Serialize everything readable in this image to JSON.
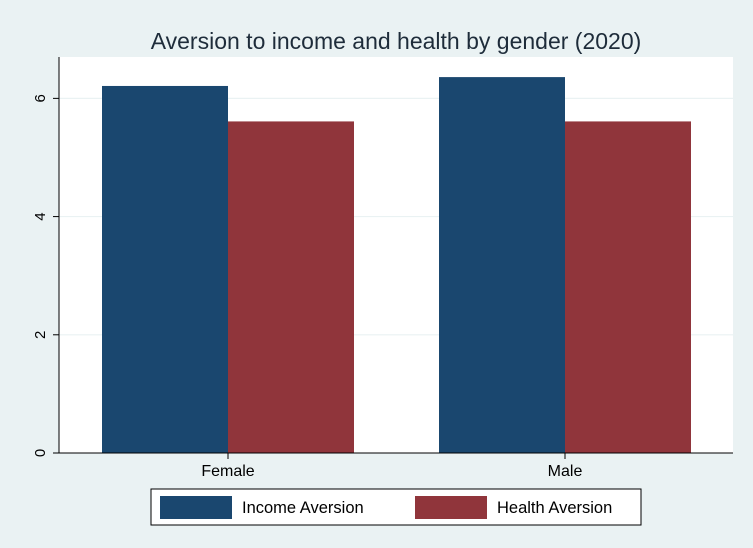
{
  "chart_data": {
    "type": "bar",
    "title": "Aversion to income and health by gender (2020)",
    "xlabel": "",
    "ylabel": "",
    "categories": [
      "Female",
      "Male"
    ],
    "series": [
      {
        "name": "Income Aversion",
        "values": [
          6.21,
          6.36
        ],
        "color": "#1a476f"
      },
      {
        "name": "Health Aversion",
        "values": [
          5.61,
          5.61
        ],
        "color": "#90353b"
      }
    ],
    "yticks": [
      "0",
      "2",
      "4",
      "6"
    ],
    "ylim": [
      0,
      6.7
    ],
    "grid": true,
    "legend_position": "bottom"
  },
  "colors": {
    "background": "#eaf2f3",
    "plot_area": "#ffffff",
    "gridline": "#eaf2f3"
  }
}
